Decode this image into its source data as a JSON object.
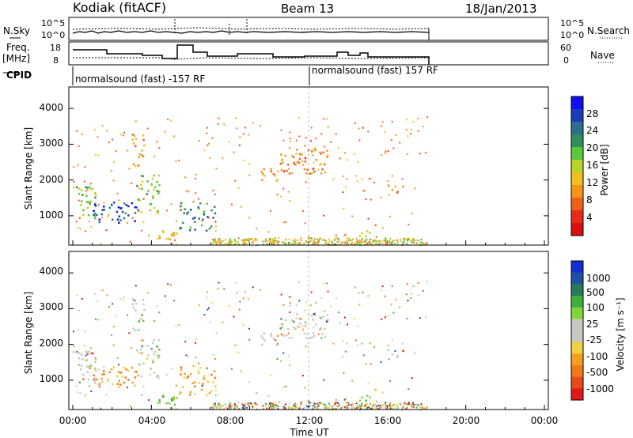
{
  "header": {
    "station": "Kodiak (fitACF)",
    "beam": "Beam 13",
    "date": "18/Jan/2013"
  },
  "strip_labels": {
    "nsky": "N.Sky",
    "nsearch": "N.Search",
    "freq": "Freq.",
    "freq_unit": "[MHz]",
    "nave": "Nave",
    "cpid": "CPID",
    "nsky_ticks": [
      "10^5",
      "10^0"
    ],
    "nsearch_ticks": [
      "10^5",
      "10^0"
    ],
    "freq_ticks": [
      "18",
      "8"
    ],
    "nave_ticks": [
      "60",
      "0"
    ]
  },
  "cpid_segments": [
    {
      "text": "normalsound (fast) -157 RF"
    },
    {
      "text": "normalsound (fast) 157 RF"
    }
  ],
  "x_axis": {
    "label": "Time UT",
    "ticks": [
      "00:00",
      "04:00",
      "08:00",
      "12:00",
      "16:00",
      "20:00",
      "00:00"
    ]
  },
  "panels": [
    {
      "ylabel": "Slant Range [km]",
      "yticks": [
        "4000",
        "3000",
        "2000",
        "1000"
      ],
      "colorbar": {
        "label": "Power [dB]",
        "ticks": [
          "28",
          "24",
          "20",
          "16",
          "12",
          "8",
          "4"
        ],
        "colors": [
          "#1010ee",
          "#1a3cb8",
          "#2c6e8c",
          "#2f8f5a",
          "#5ec63c",
          "#b8d42c",
          "#f0c020",
          "#f59418",
          "#f06018",
          "#e62a1a",
          "#d80f10"
        ]
      }
    },
    {
      "ylabel": "Slant Range [km]",
      "yticks": [
        "4000",
        "3000",
        "2000",
        "1000"
      ],
      "colorbar": {
        "label": "Velocity [m s⁻¹]",
        "ticks": [
          "1000",
          "500",
          "100",
          "25",
          "-25",
          "-100",
          "-500",
          "-1000"
        ],
        "colors": [
          "#1030d0",
          "#2050a0",
          "#2a7a5a",
          "#3fae3a",
          "#7fd63a",
          "#c8c8c0",
          "#c8c8c0",
          "#f0d040",
          "#f5a020",
          "#f07a18",
          "#ea4a18",
          "#e01818"
        ]
      }
    }
  ],
  "chart_data": {
    "type": "heatmap",
    "title": "Kodiak (fitACF)",
    "x_range_hours": [
      0,
      24
    ],
    "y_range_km": [
      180,
      4600
    ],
    "xlabel": "Time UT",
    "ylabel": "Slant Range [km]",
    "power_scatter_features": [
      {
        "t0": 0.0,
        "t1": 1.2,
        "r0": 900,
        "r1": 1900,
        "value": 18
      },
      {
        "t0": 1.0,
        "t1": 3.3,
        "r0": 800,
        "r1": 1400,
        "value": 27
      },
      {
        "t0": 3.2,
        "t1": 4.4,
        "r0": 1100,
        "r1": 2200,
        "value": 16
      },
      {
        "t0": 3.0,
        "t1": 3.7,
        "r0": 2400,
        "r1": 3300,
        "value": 10
      },
      {
        "t0": 4.2,
        "t1": 5.6,
        "r0": 350,
        "r1": 700,
        "value": 12
      },
      {
        "t0": 5.4,
        "t1": 7.2,
        "r0": 600,
        "r1": 1400,
        "value": 22
      },
      {
        "t0": 9.5,
        "t1": 10.5,
        "r0": 2000,
        "r1": 2400,
        "value": 10
      },
      {
        "t0": 10.5,
        "t1": 13.0,
        "r0": 2200,
        "r1": 2900,
        "value": 8
      },
      {
        "t0": 14.4,
        "t1": 15.2,
        "r0": 200,
        "r1": 600,
        "value": 16
      },
      {
        "t0": 16.0,
        "t1": 16.8,
        "r0": 1600,
        "r1": 1900,
        "value": 8
      }
    ]
  }
}
